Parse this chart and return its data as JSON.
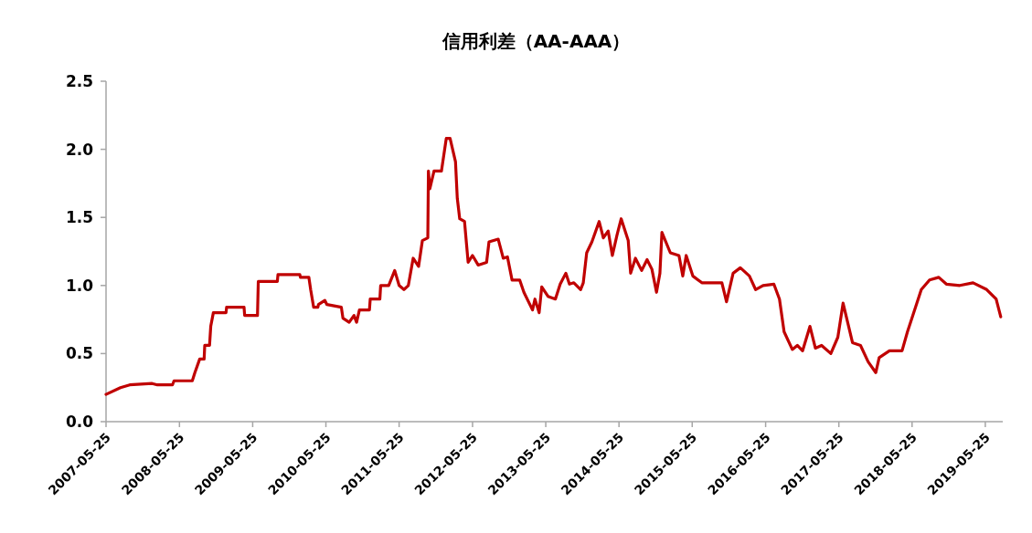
{
  "chart_data": {
    "type": "line",
    "title": "信用利差（AA-AAA）",
    "x": [
      "2007-05-25",
      "2007-08-05",
      "2007-09-20",
      "2008-01-10",
      "2008-02-05",
      "2008-04-20",
      "2008-04-28",
      "2008-07-28",
      "2008-08-10",
      "2008-09-03",
      "2008-09-25",
      "2008-09-28",
      "2008-10-22",
      "2008-10-28",
      "2008-11-10",
      "2009-01-12",
      "2009-01-15",
      "2009-04-12",
      "2009-04-15",
      "2009-06-18",
      "2009-06-22",
      "2009-09-25",
      "2009-09-28",
      "2010-01-15",
      "2010-01-18",
      "2010-03-01",
      "2010-03-10",
      "2010-03-25",
      "2010-04-15",
      "2010-04-18",
      "2010-05-20",
      "2010-05-30",
      "2010-08-10",
      "2010-08-18",
      "2010-09-18",
      "2010-10-12",
      "2010-10-25",
      "2010-11-08",
      "2010-12-28",
      "2011-01-01",
      "2011-02-18",
      "2011-02-22",
      "2011-04-03",
      "2011-05-03",
      "2011-05-25",
      "2011-06-18",
      "2011-07-10",
      "2011-08-03",
      "2011-08-30",
      "2011-09-18",
      "2011-10-15",
      "2011-10-18",
      "2011-10-25",
      "2011-11-15",
      "2011-12-22",
      "2012-01-15",
      "2012-02-03",
      "2012-03-01",
      "2012-03-10",
      "2012-03-22",
      "2012-04-15",
      "2012-05-03",
      "2012-05-25",
      "2012-06-22",
      "2012-08-03",
      "2012-08-15",
      "2012-09-30",
      "2012-10-25",
      "2012-11-15",
      "2012-12-08",
      "2013-01-15",
      "2013-02-05",
      "2013-03-20",
      "2013-04-01",
      "2013-04-22",
      "2013-05-05",
      "2013-06-05",
      "2013-07-12",
      "2013-08-05",
      "2013-09-02",
      "2013-09-20",
      "2013-10-12",
      "2013-11-15",
      "2013-11-28",
      "2013-12-15",
      "2014-01-10",
      "2014-02-15",
      "2014-03-08",
      "2014-04-01",
      "2014-04-22",
      "2014-05-15",
      "2014-06-05",
      "2014-07-10",
      "2014-07-22",
      "2014-08-15",
      "2014-09-15",
      "2014-10-12",
      "2014-11-05",
      "2014-11-28",
      "2014-12-15",
      "2014-12-25",
      "2015-02-05",
      "2015-03-20",
      "2015-04-08",
      "2015-04-25",
      "2015-05-28",
      "2015-07-12",
      "2015-10-20",
      "2015-11-12",
      "2015-12-15",
      "2016-01-20",
      "2016-03-05",
      "2016-04-05",
      "2016-05-12",
      "2016-07-05",
      "2016-08-02",
      "2016-08-25",
      "2016-10-05",
      "2016-10-30",
      "2016-11-25",
      "2017-01-01",
      "2017-01-28",
      "2017-02-28",
      "2017-04-15",
      "2017-05-20",
      "2017-06-15",
      "2017-08-01",
      "2017-09-10",
      "2017-10-18",
      "2017-11-25",
      "2017-12-12",
      "2018-02-01",
      "2018-04-05",
      "2018-05-02",
      "2018-06-02",
      "2018-07-10",
      "2018-08-20",
      "2018-10-05",
      "2018-11-12",
      "2019-01-18",
      "2019-03-25",
      "2019-06-01",
      "2019-07-18",
      "2019-08-10"
    ],
    "series": [
      {
        "color": "#c00000",
        "values": [
          0.2,
          0.25,
          0.27,
          0.28,
          0.27,
          0.27,
          0.3,
          0.3,
          0.36,
          0.46,
          0.46,
          0.56,
          0.56,
          0.7,
          0.8,
          0.8,
          0.84,
          0.84,
          0.78,
          0.78,
          1.03,
          1.03,
          1.08,
          1.08,
          1.06,
          1.06,
          0.97,
          0.84,
          0.84,
          0.86,
          0.89,
          0.86,
          0.84,
          0.76,
          0.73,
          0.78,
          0.73,
          0.82,
          0.82,
          0.9,
          0.9,
          1.0,
          1.0,
          1.11,
          1.0,
          0.97,
          1.0,
          1.2,
          1.14,
          1.33,
          1.35,
          1.84,
          1.71,
          1.84,
          1.84,
          2.08,
          2.08,
          1.91,
          1.64,
          1.49,
          1.47,
          1.17,
          1.22,
          1.15,
          1.17,
          1.32,
          1.34,
          1.2,
          1.21,
          1.04,
          1.04,
          0.95,
          0.82,
          0.9,
          0.8,
          0.99,
          0.92,
          0.9,
          1.01,
          1.09,
          1.01,
          1.02,
          0.97,
          1.02,
          1.24,
          1.32,
          1.47,
          1.35,
          1.4,
          1.22,
          1.37,
          1.49,
          1.33,
          1.09,
          1.2,
          1.11,
          1.19,
          1.12,
          0.95,
          1.09,
          1.39,
          1.24,
          1.22,
          1.07,
          1.22,
          1.07,
          1.02,
          1.02,
          0.88,
          1.09,
          1.13,
          1.07,
          0.97,
          1.0,
          1.01,
          0.9,
          0.66,
          0.53,
          0.56,
          0.52,
          0.7,
          0.54,
          0.56,
          0.5,
          0.62,
          0.87,
          0.58,
          0.56,
          0.44,
          0.36,
          0.47,
          0.52,
          0.52,
          0.66,
          0.8,
          0.97,
          1.04,
          1.06,
          1.01,
          1.0,
          1.02,
          0.97,
          0.9,
          0.77
        ]
      }
    ],
    "xlim": [
      "2007-05-25",
      "2019-08-20"
    ],
    "xticks": [
      "2007-05-25",
      "2008-05-25",
      "2009-05-25",
      "2010-05-25",
      "2011-05-25",
      "2012-05-25",
      "2013-05-25",
      "2014-05-25",
      "2015-05-25",
      "2016-05-25",
      "2017-05-25",
      "2018-05-25",
      "2019-05-25"
    ],
    "ylim": [
      0,
      2.5
    ],
    "yticks": [
      {
        "value": 0,
        "label": "0.0"
      },
      0.5,
      {
        "value": 1,
        "label": "1.0"
      },
      1.5,
      {
        "value": 2,
        "label": "2.0"
      },
      2.5
    ],
    "grid": false,
    "marker": "none",
    "line_style": "solid"
  }
}
